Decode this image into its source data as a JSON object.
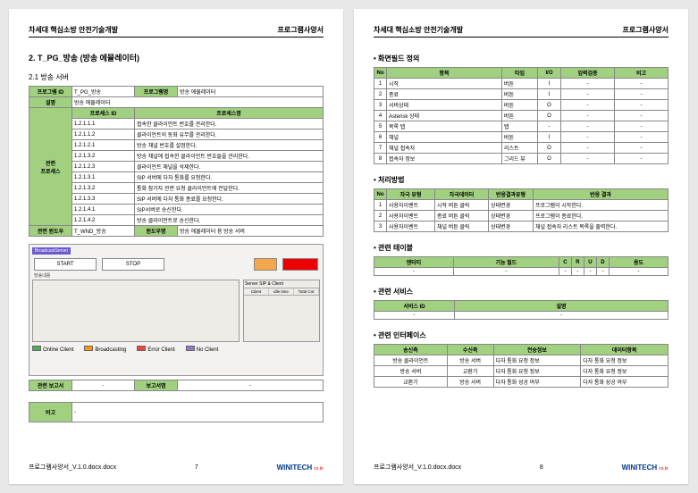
{
  "header": {
    "left": "차세대 핵심소방 안전기술개발",
    "right": "프로그램사양서"
  },
  "footer": {
    "file": "프로그램사양서_V.1.0.docx.docx",
    "brand": "WINITECH",
    "tag": "co.kr"
  },
  "left": {
    "title": "2. T_PG_방송 (방송 에뮬레이터)",
    "sub": "2.1 방송 서버",
    "info": {
      "program_id_label": "프로그램 ID",
      "program_id": "T_PG_방송",
      "program_name_label": "프로그램명",
      "program_name": "방송 에뮬레이터",
      "desc_label": "설명",
      "desc": "방송 에뮬레이터",
      "proc_section": "관련\n프로세스",
      "proc_id_h": "프로세스 ID",
      "proc_name_h": "프로세스명",
      "procs": [
        {
          "id": "1.2.1.1.1",
          "name": "접속한 클라이언트 번호를 관리한다."
        },
        {
          "id": "1.2.1.1.2",
          "name": "클라이언트의 동화 유무를 관리한다."
        },
        {
          "id": "1.2.1.2.1",
          "name": "방송 채널 번호를 설정한다."
        },
        {
          "id": "1.2.1.3.2",
          "name": "방송 채널에 접속한 클라이언트 번호들을 관리한다."
        },
        {
          "id": "1.2.1.2.3",
          "name": "클라이언트 채널을 삭제한다."
        },
        {
          "id": "1.2.1.3.1",
          "name": "SIP 서버에 다자 통화를 요청한다."
        },
        {
          "id": "1.2.1.3.2",
          "name": "통화 참가자 관련 요청 클라이언트에 전달한다."
        },
        {
          "id": "1.2.1.3.3",
          "name": "SIP 서버에 다자 통화 종료를 요청한다."
        },
        {
          "id": "1.2.1.4.1",
          "name": "SIP서버로 송신한다."
        },
        {
          "id": "1.2.1.4.2",
          "name": "방송 클라이언트로 송신한다."
        }
      ],
      "rel_win_label": "관련 윈도우",
      "rel_win_id": "T_WND_방송",
      "rel_win_type_label": "윈도우명",
      "rel_win_type": "방송 에뮬레이터 용 방송 서버"
    },
    "app": {
      "title": "BroadcastServer",
      "start": "START",
      "stop": "STOP",
      "panel_label": "방송내용",
      "sip_label": "Server SIP & Client",
      "grid_cols": [
        "Client",
        "idle time",
        "Total Cnt"
      ],
      "legend": [
        {
          "cls": "s-green",
          "t": "Online Client"
        },
        {
          "cls": "s-orange",
          "t": "Broadcasting"
        },
        {
          "cls": "s-red",
          "t": "Error Client"
        },
        {
          "cls": "s-purple",
          "t": "No Client"
        }
      ]
    },
    "report": {
      "label": "관련 보고서",
      "dash": "-",
      "name_label": "보고서명",
      "dash2": "-"
    },
    "remark": {
      "label": "비고",
      "dash": "-"
    },
    "pgnum": "7"
  },
  "right": {
    "s1": "• 화면필드 정의",
    "t1": {
      "h": [
        "No",
        "항목",
        "타입",
        "I/O",
        "입력검증",
        "비고"
      ],
      "rows": [
        [
          "1",
          "시작",
          "버튼",
          "I",
          "-",
          "-"
        ],
        [
          "2",
          "종료",
          "버튼",
          "I",
          "-",
          "-"
        ],
        [
          "3",
          "서버상태",
          "버튼",
          "O",
          "-",
          "-"
        ],
        [
          "4",
          "Asterisk 상태",
          "버튼",
          "O",
          "-",
          "-"
        ],
        [
          "5",
          "목록 탭",
          "탭",
          "-",
          "-",
          "-"
        ],
        [
          "6",
          "채널",
          "버튼",
          "I",
          "-",
          "-"
        ],
        [
          "7",
          "채널 접속자",
          "리스트",
          "O",
          "-",
          "-"
        ],
        [
          "8",
          "접속자 정보",
          "그리드 뷰",
          "O",
          "-",
          "-"
        ]
      ]
    },
    "s2": "• 처리방법",
    "t2": {
      "h": [
        "No",
        "자극 유형",
        "자극데이터",
        "반응결과유형",
        "반응 결과"
      ],
      "rows": [
        [
          "1",
          "사용자이벤트",
          "시작 버튼 클릭",
          "상태변경",
          "프로그램이 시작한다."
        ],
        [
          "2",
          "사용자이벤트",
          "종료 버튼 클릭",
          "상태변경",
          "프로그램이 종료한다."
        ],
        [
          "3",
          "사용자이벤트",
          "채널 버튼 클릭",
          "상태변경",
          "채널 접속자 리스트 목록을 출력한다."
        ]
      ]
    },
    "s3": "• 관련 테이블",
    "t3": {
      "h": [
        "엔터티",
        "기능 필드",
        "C",
        "R",
        "U",
        "D",
        "용도"
      ],
      "row": [
        "-",
        "-",
        "-",
        "-",
        "-",
        "-",
        "-"
      ]
    },
    "s4": "• 관련 서비스",
    "t4": {
      "h": [
        "서비스 ID",
        "설명"
      ],
      "row": [
        "-",
        "-"
      ]
    },
    "s5": "• 관련 인터페이스",
    "t5": {
      "h": [
        "송신측",
        "수신측",
        "전송정보",
        "데이터항목"
      ],
      "rows": [
        [
          "방송 클라이언트",
          "방송 서버",
          "다자 통화 요청 정보",
          "다자 통화 요청 정보"
        ],
        [
          "방송 서버",
          "교환기",
          "다자 통화 요청 정보",
          "다자 통화 요청 정보"
        ],
        [
          "교환기",
          "방송 서버",
          "다자 통화 성공 여부",
          "다자 통화 성공 여부"
        ]
      ]
    },
    "pgnum": "8"
  }
}
